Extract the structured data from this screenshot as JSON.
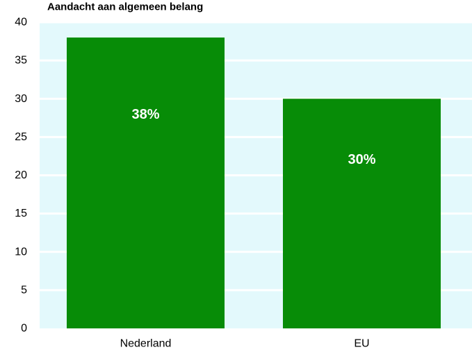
{
  "chart_data": {
    "type": "bar",
    "title": "Aandacht aan algemeen belang",
    "categories": [
      "Nederland",
      "EU"
    ],
    "values": [
      38,
      30
    ],
    "data_labels": [
      "38%",
      "30%"
    ],
    "y_ticks": [
      "0",
      "5",
      "10",
      "15",
      "20",
      "25",
      "30",
      "35",
      "40"
    ],
    "ylim": [
      0,
      40
    ],
    "xlabel": "",
    "ylabel": "",
    "grid": true,
    "legend": "none",
    "colors": {
      "bar": "#078C07",
      "plot_background": "#E3F9FC",
      "gridline": "#FFFFFF"
    }
  }
}
